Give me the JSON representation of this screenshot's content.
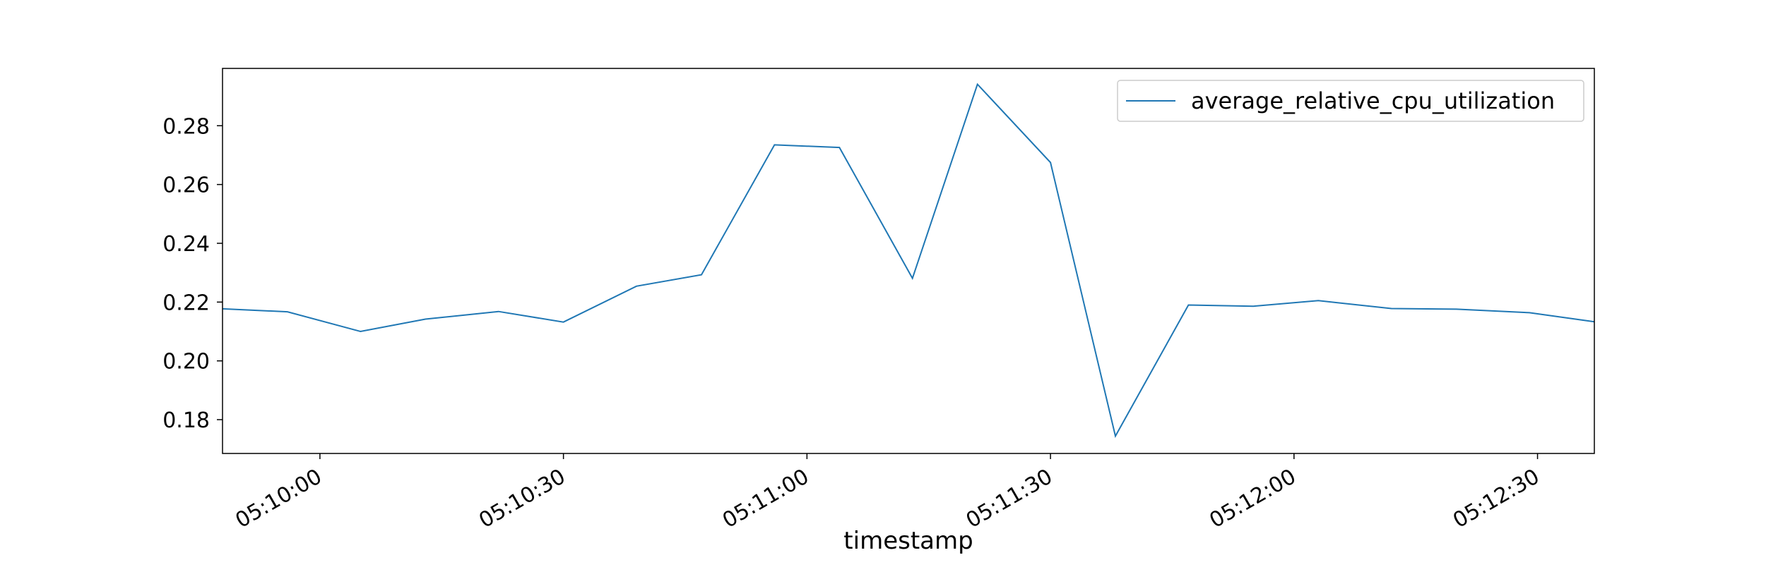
{
  "chart_data": {
    "type": "line",
    "title": "",
    "xlabel": "timestamp",
    "ylabel": "",
    "x_tick_labels": [
      "05:10:00",
      "05:10:30",
      "05:11:00",
      "05:11:30",
      "05:12:00",
      "05:12:30"
    ],
    "y_tick_labels": [
      "0.18",
      "0.20",
      "0.22",
      "0.24",
      "0.26",
      "0.28"
    ],
    "y_ticks": [
      0.18,
      0.2,
      0.22,
      0.24,
      0.26,
      0.28
    ],
    "ylim": [
      0.1685,
      0.2995
    ],
    "xlim": [
      "05:09:48",
      "05:12:37"
    ],
    "legend_position": "upper right",
    "grid": false,
    "colors": {
      "series": "#1f77b4",
      "frame": "#000000",
      "legend_border": "#cccccc"
    },
    "series": [
      {
        "name": "average_relative_cpu_utilization",
        "x": [
          "05:09:48",
          "05:09:56",
          "05:10:05",
          "05:10:13",
          "05:10:22",
          "05:10:30",
          "05:10:39",
          "05:10:47",
          "05:10:56",
          "05:11:04",
          "05:11:13",
          "05:11:21",
          "05:11:30",
          "05:11:38",
          "05:11:47",
          "05:11:55",
          "05:12:03",
          "05:12:12",
          "05:12:20",
          "05:12:29",
          "05:12:37"
        ],
        "y": [
          0.2177,
          0.2167,
          0.21,
          0.2142,
          0.2168,
          0.2132,
          0.2254,
          0.2293,
          0.2735,
          0.2726,
          0.2281,
          0.2941,
          0.2675,
          0.1744,
          0.219,
          0.2186,
          0.2205,
          0.2178,
          0.2176,
          0.2164,
          0.2133
        ]
      }
    ]
  }
}
